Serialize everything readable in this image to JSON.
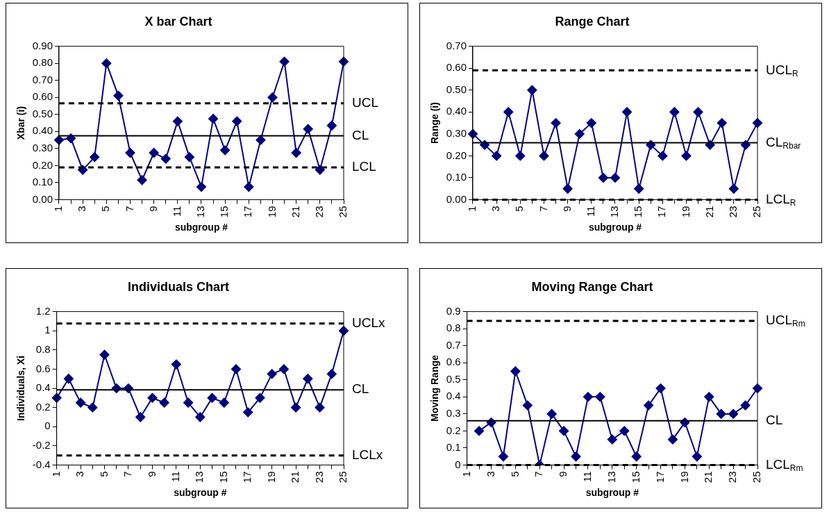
{
  "chart_data": [
    {
      "type": "line",
      "title": "X bar Chart",
      "xlabel": "subgroup #",
      "ylabel": "Xbar (i)",
      "categories": [
        "1",
        null,
        "3",
        null,
        "5",
        null,
        "7",
        null,
        "9",
        null,
        "11",
        null,
        "13",
        null,
        "15",
        null,
        "17",
        null,
        "19",
        null,
        "21",
        null,
        "23",
        null,
        "25"
      ],
      "series": [
        {
          "color": "#000080",
          "values": [
            0.35,
            0.36,
            0.175,
            0.25,
            0.8,
            0.61,
            0.275,
            0.115,
            0.275,
            0.24,
            0.46,
            0.25,
            0.075,
            0.475,
            0.29,
            0.46,
            0.075,
            0.35,
            0.6,
            0.81,
            0.275,
            0.415,
            0.175,
            0.435,
            0.81
          ]
        }
      ],
      "ylim": [
        0,
        0.9
      ],
      "yticks": [
        {
          "value": 0,
          "label": "0.00"
        },
        {
          "value": 0.1,
          "label": "0.10"
        },
        {
          "value": 0.2,
          "label": "0.20"
        },
        {
          "value": 0.3,
          "label": "0.30"
        },
        {
          "value": 0.4,
          "label": "0.40"
        },
        {
          "value": 0.5,
          "label": "0.50"
        },
        {
          "value": 0.6,
          "label": "0.60"
        },
        {
          "value": 0.7,
          "label": "0.70"
        },
        {
          "value": 0.8,
          "label": "0.80"
        },
        {
          "value": 0.9,
          "label": "0.90"
        }
      ],
      "ref_lines": [
        {
          "axis": "y",
          "value": 0.565,
          "label": "UCL",
          "color": "#000000",
          "line_style": "dashed"
        },
        {
          "axis": "y",
          "value": 0.375,
          "label": "CL",
          "color": "#000000",
          "line_style": "solid"
        },
        {
          "axis": "y",
          "value": 0.19,
          "label": "LCL",
          "color": "#000000",
          "line_style": "dashed"
        }
      ],
      "grid": false,
      "legend": false,
      "marker": "diamond",
      "line_style": "solid"
    },
    {
      "type": "line",
      "title": "Range Chart",
      "xlabel": "subgroup #",
      "ylabel": "Range (i)",
      "categories": [
        "1",
        null,
        "3",
        null,
        "5",
        null,
        "7",
        null,
        "9",
        null,
        "11",
        null,
        "13",
        null,
        "15",
        null,
        "17",
        null,
        "19",
        null,
        "21",
        null,
        "23",
        null,
        "25"
      ],
      "series": [
        {
          "color": "#000080",
          "values": [
            0.3,
            0.25,
            0.2,
            0.4,
            0.2,
            0.5,
            0.2,
            0.35,
            0.05,
            0.3,
            0.35,
            0.1,
            0.1,
            0.4,
            0.05,
            0.25,
            0.2,
            0.4,
            0.2,
            0.4,
            0.25,
            0.35,
            0.05,
            0.25,
            0.35
          ]
        }
      ],
      "ylim": [
        0,
        0.7
      ],
      "yticks": [
        {
          "value": 0,
          "label": "0.00"
        },
        {
          "value": 0.1,
          "label": "0.10"
        },
        {
          "value": 0.2,
          "label": "0.20"
        },
        {
          "value": 0.3,
          "label": "0.30"
        },
        {
          "value": 0.4,
          "label": "0.40"
        },
        {
          "value": 0.5,
          "label": "0.50"
        },
        {
          "value": 0.6,
          "label": "0.60"
        },
        {
          "value": 0.7,
          "label": "0.70"
        }
      ],
      "ref_lines": [
        {
          "axis": "y",
          "value": 0.59,
          "label": "UCL$_{R}$",
          "color": "#000000",
          "line_style": "dashed"
        },
        {
          "axis": "y",
          "value": 0.26,
          "label": "CL$_{Rbar}$",
          "color": "#000000",
          "line_style": "solid"
        },
        {
          "axis": "y",
          "value": 0,
          "label": "LCL$_{R}$",
          "color": "#000000",
          "line_style": "dashed"
        }
      ],
      "grid": false,
      "legend": false,
      "marker": "diamond",
      "line_style": "solid"
    },
    {
      "type": "line",
      "title": "Individuals Chart",
      "xlabel": "subgroup #",
      "ylabel": "Individuals, Xi",
      "categories": [
        "1",
        null,
        "3",
        null,
        "5",
        null,
        "7",
        null,
        "9",
        null,
        "11",
        null,
        "13",
        null,
        "15",
        null,
        "17",
        null,
        "19",
        null,
        "21",
        null,
        "23",
        null,
        "25"
      ],
      "series": [
        {
          "color": "#000080",
          "values": [
            0.3,
            0.5,
            0.25,
            0.2,
            0.75,
            0.4,
            0.4,
            0.1,
            0.3,
            0.25,
            0.65,
            0.25,
            0.1,
            0.3,
            0.25,
            0.6,
            0.15,
            0.3,
            0.55,
            0.6,
            0.2,
            0.5,
            0.2,
            0.55,
            1.0
          ]
        }
      ],
      "ylim": [
        -0.4,
        1.2
      ],
      "yticks": [
        -0.4,
        -0.2,
        0,
        0.2,
        0.4,
        0.6,
        0.8,
        1,
        1.2
      ],
      "ref_lines": [
        {
          "axis": "y",
          "value": 1.075,
          "label": "UCLx",
          "color": "#000000",
          "line_style": "dashed"
        },
        {
          "axis": "y",
          "value": 0.385,
          "label": "CL",
          "color": "#000000",
          "line_style": "solid"
        },
        {
          "axis": "y",
          "value": -0.3,
          "label": "LCLx",
          "color": "#000000",
          "line_style": "dashed"
        }
      ],
      "grid": false,
      "legend": false,
      "marker": "diamond",
      "line_style": "solid"
    },
    {
      "type": "line",
      "title": "Moving Range Chart",
      "xlabel": "subgroup #",
      "ylabel": "Moving Range",
      "categories": [
        "1",
        null,
        "3",
        null,
        "5",
        null,
        "7",
        null,
        "9",
        null,
        "11",
        null,
        "13",
        null,
        "15",
        null,
        "17",
        null,
        "19",
        null,
        "21",
        null,
        "23",
        null,
        "25"
      ],
      "series": [
        {
          "color": "#000080",
          "values": [
            null,
            0.2,
            0.25,
            0.05,
            0.55,
            0.35,
            0,
            0.3,
            0.2,
            0.05,
            0.4,
            0.4,
            0.15,
            0.2,
            0.05,
            0.35,
            0.45,
            0.15,
            0.25,
            0.05,
            0.4,
            0.3,
            0.3,
            0.35,
            0.45
          ]
        }
      ],
      "ylim": [
        0,
        0.9
      ],
      "yticks": [
        0,
        0.1,
        0.2,
        0.3,
        0.4,
        0.5,
        0.6,
        0.7,
        0.8,
        0.9
      ],
      "ref_lines": [
        {
          "axis": "y",
          "value": 0.845,
          "label": "UCL$_{Rm}$",
          "color": "#000000",
          "line_style": "dashed"
        },
        {
          "axis": "y",
          "value": 0.26,
          "label": "CL",
          "color": "#000000",
          "line_style": "solid"
        },
        {
          "axis": "y",
          "value": 0,
          "label": "LCL$_{Rm}$",
          "color": "#000000",
          "line_style": "dashed"
        }
      ],
      "grid": false,
      "legend": false,
      "marker": "diamond",
      "line_style": "solid"
    }
  ]
}
